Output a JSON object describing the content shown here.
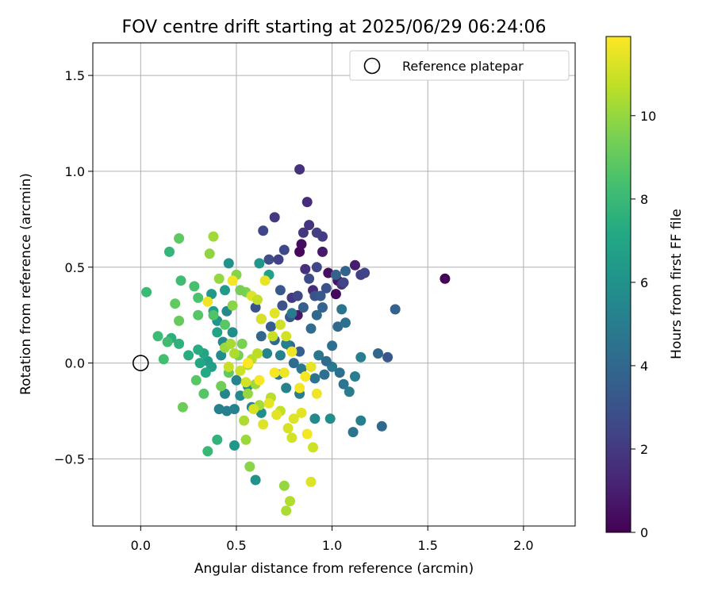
{
  "chart_data": {
    "type": "scatter",
    "title": "FOV centre drift starting at 2025/06/29 06:24:06",
    "xlabel": "Angular distance from reference (arcmin)",
    "ylabel": "Rotation from reference (arcmin)",
    "xlim": [
      -0.25,
      2.27
    ],
    "ylim": [
      -0.85,
      1.67
    ],
    "xticks": [
      0.0,
      0.5,
      1.0,
      1.5,
      2.0
    ],
    "xtick_labels": [
      "0.0",
      "0.5",
      "1.0",
      "1.5",
      "2.0"
    ],
    "yticks": [
      -0.5,
      0.0,
      0.5,
      1.0,
      1.5
    ],
    "ytick_labels": [
      "−0.5",
      "0.0",
      "0.5",
      "1.0",
      "1.5"
    ],
    "grid": true,
    "legend": {
      "placement": "top-right",
      "label": "Reference platepar",
      "marker": "open-circle"
    },
    "reference_point": {
      "x": 0.0,
      "y": 0.0
    },
    "colorbar": {
      "label": "Hours from first FF file",
      "min": 0,
      "max": 11.9,
      "ticks": [
        0,
        2,
        4,
        6,
        8,
        10
      ],
      "tick_labels": [
        "0",
        "2",
        "4",
        "6",
        "8",
        "10"
      ],
      "colormap": "viridis",
      "colors": [
        "#440154",
        "#482475",
        "#414487",
        "#355f8d",
        "#2a788e",
        "#21918c",
        "#22a884",
        "#44bf70",
        "#7ad151",
        "#bddf26",
        "#fde725"
      ]
    },
    "points": [
      [
        1.59,
        0.44,
        0.1
      ],
      [
        0.83,
        0.58,
        0.2
      ],
      [
        0.84,
        0.62,
        0.4
      ],
      [
        0.98,
        0.47,
        0.5
      ],
      [
        1.02,
        0.36,
        0.3
      ],
      [
        1.03,
        0.43,
        0.6
      ],
      [
        0.95,
        0.58,
        0.8
      ],
      [
        0.82,
        0.25,
        0.7
      ],
      [
        1.12,
        0.51,
        0.9
      ],
      [
        0.87,
        0.84,
        1.5
      ],
      [
        0.83,
        1.01,
        1.7
      ],
      [
        0.88,
        0.72,
        1.8
      ],
      [
        0.7,
        0.76,
        2.0
      ],
      [
        0.85,
        0.68,
        1.9
      ],
      [
        0.95,
        0.66,
        2.1
      ],
      [
        0.92,
        0.68,
        2.2
      ],
      [
        0.86,
        0.49,
        1.6
      ],
      [
        0.9,
        0.38,
        1.4
      ],
      [
        1.05,
        0.41,
        1.7
      ],
      [
        1.15,
        0.46,
        2.2
      ],
      [
        1.17,
        0.47,
        2.4
      ],
      [
        0.64,
        0.69,
        2.5
      ],
      [
        0.75,
        0.59,
        2.6
      ],
      [
        0.67,
        0.54,
        2.8
      ],
      [
        0.72,
        0.54,
        2.3
      ],
      [
        0.79,
        0.34,
        2.0
      ],
      [
        0.82,
        0.35,
        2.6
      ],
      [
        0.88,
        0.44,
        2.7
      ],
      [
        0.92,
        0.5,
        2.5
      ],
      [
        0.97,
        0.39,
        2.9
      ],
      [
        1.06,
        0.42,
        2.4
      ],
      [
        0.74,
        0.3,
        3.0
      ],
      [
        0.78,
        0.24,
        3.2
      ],
      [
        0.73,
        0.38,
        3.3
      ],
      [
        0.6,
        0.29,
        3.1
      ],
      [
        0.63,
        0.23,
        3.4
      ],
      [
        0.68,
        0.19,
        3.5
      ],
      [
        0.85,
        0.29,
        3.6
      ],
      [
        0.91,
        0.35,
        3.0
      ],
      [
        0.94,
        0.35,
        3.3
      ],
      [
        1.02,
        0.46,
        3.7
      ],
      [
        1.07,
        0.48,
        3.8
      ],
      [
        0.63,
        0.14,
        3.9
      ],
      [
        0.7,
        0.12,
        4.0
      ],
      [
        0.78,
        0.09,
        4.1
      ],
      [
        0.83,
        0.06,
        3.6
      ],
      [
        0.89,
        0.18,
        4.2
      ],
      [
        0.92,
        0.25,
        4.0
      ],
      [
        0.95,
        0.29,
        3.8
      ],
      [
        1.0,
        0.09,
        4.3
      ],
      [
        1.03,
        0.19,
        4.1
      ],
      [
        1.07,
        0.21,
        4.4
      ],
      [
        1.05,
        0.28,
        4.5
      ],
      [
        0.93,
        0.04,
        4.6
      ],
      [
        0.8,
        0.0,
        4.2
      ],
      [
        0.84,
        -0.03,
        4.7
      ],
      [
        0.91,
        -0.08,
        4.5
      ],
      [
        0.96,
        -0.06,
        4.3
      ],
      [
        1.0,
        -0.02,
        4.8
      ],
      [
        1.04,
        -0.05,
        4.4
      ],
      [
        1.06,
        -0.11,
        4.6
      ],
      [
        1.09,
        -0.15,
        4.9
      ],
      [
        1.12,
        -0.07,
        5.0
      ],
      [
        0.97,
        0.01,
        4.1
      ],
      [
        1.24,
        0.05,
        3.9
      ],
      [
        1.29,
        0.03,
        3.2
      ],
      [
        1.33,
        0.28,
        3.7
      ],
      [
        1.26,
        -0.33,
        4.0
      ],
      [
        1.11,
        -0.36,
        4.6
      ],
      [
        1.15,
        -0.3,
        5.1
      ],
      [
        1.15,
        0.03,
        5.0
      ],
      [
        0.79,
        0.26,
        4.8
      ],
      [
        0.76,
        0.1,
        5.0
      ],
      [
        0.73,
        0.04,
        5.2
      ],
      [
        0.66,
        0.05,
        5.4
      ],
      [
        0.72,
        -0.06,
        4.9
      ],
      [
        0.76,
        -0.13,
        5.3
      ],
      [
        0.83,
        -0.16,
        5.0
      ],
      [
        0.91,
        -0.29,
        5.5
      ],
      [
        0.99,
        -0.29,
        5.8
      ],
      [
        0.45,
        0.27,
        5.5
      ],
      [
        0.43,
        0.11,
        5.6
      ],
      [
        0.42,
        0.04,
        5.7
      ],
      [
        0.48,
        0.16,
        5.8
      ],
      [
        0.5,
        -0.09,
        5.3
      ],
      [
        0.52,
        -0.17,
        5.5
      ],
      [
        0.56,
        -0.12,
        5.9
      ],
      [
        0.44,
        -0.16,
        5.4
      ],
      [
        0.41,
        -0.24,
        5.2
      ],
      [
        0.45,
        -0.25,
        5.1
      ],
      [
        0.49,
        -0.24,
        5.3
      ],
      [
        0.58,
        -0.23,
        5.6
      ],
      [
        0.63,
        -0.26,
        5.8
      ],
      [
        0.6,
        -0.61,
        6.0
      ],
      [
        0.49,
        -0.43,
        6.2
      ],
      [
        0.37,
        0.36,
        6.3
      ],
      [
        0.4,
        0.22,
        6.1
      ],
      [
        0.44,
        0.38,
        6.4
      ],
      [
        0.38,
        0.27,
        6.6
      ],
      [
        0.35,
        0.01,
        6.5
      ],
      [
        0.37,
        -0.02,
        6.7
      ],
      [
        0.46,
        0.52,
        6.0
      ],
      [
        0.62,
        0.52,
        6.2
      ],
      [
        0.67,
        0.46,
        6.8
      ],
      [
        0.4,
        0.16,
        6.9
      ],
      [
        0.33,
        0.05,
        7.0
      ],
      [
        0.31,
        0.0,
        7.1
      ],
      [
        0.3,
        0.07,
        7.3
      ],
      [
        0.34,
        -0.05,
        7.2
      ],
      [
        0.25,
        0.04,
        7.4
      ],
      [
        0.16,
        0.13,
        7.5
      ],
      [
        0.2,
        0.1,
        7.6
      ],
      [
        0.4,
        -0.4,
        7.7
      ],
      [
        0.35,
        -0.46,
        7.9
      ],
      [
        0.15,
        0.58,
        7.8
      ],
      [
        0.03,
        0.37,
        8.0
      ],
      [
        0.09,
        0.14,
        8.1
      ],
      [
        0.12,
        0.02,
        8.3
      ],
      [
        0.21,
        0.43,
        8.2
      ],
      [
        0.28,
        0.4,
        8.4
      ],
      [
        0.3,
        0.34,
        8.5
      ],
      [
        0.3,
        0.25,
        8.7
      ],
      [
        0.38,
        0.25,
        8.6
      ],
      [
        0.44,
        0.2,
        8.8
      ],
      [
        0.2,
        0.65,
        8.9
      ],
      [
        0.18,
        0.31,
        9.0
      ],
      [
        0.2,
        0.22,
        9.1
      ],
      [
        0.14,
        0.11,
        8.2
      ],
      [
        0.29,
        -0.09,
        8.8
      ],
      [
        0.22,
        -0.23,
        9.2
      ],
      [
        0.33,
        -0.16,
        8.7
      ],
      [
        0.42,
        -0.12,
        9.3
      ],
      [
        0.46,
        -0.05,
        9.0
      ],
      [
        0.51,
        0.04,
        9.4
      ],
      [
        0.53,
        0.1,
        9.5
      ],
      [
        0.55,
        0.37,
        9.6
      ],
      [
        0.5,
        0.46,
        9.7
      ],
      [
        0.52,
        0.38,
        9.4
      ],
      [
        0.48,
        0.3,
        9.8
      ],
      [
        0.38,
        0.66,
        10.2
      ],
      [
        0.36,
        0.57,
        9.9
      ],
      [
        0.41,
        0.44,
        10.0
      ],
      [
        0.44,
        0.08,
        10.1
      ],
      [
        0.47,
        0.1,
        10.3
      ],
      [
        0.49,
        0.05,
        10.4
      ],
      [
        0.56,
        -0.01,
        10.5
      ],
      [
        0.58,
        0.02,
        10.6
      ],
      [
        0.61,
        0.05,
        10.7
      ],
      [
        0.6,
        -0.11,
        10.2
      ],
      [
        0.56,
        -0.16,
        10.0
      ],
      [
        0.62,
        -0.22,
        10.3
      ],
      [
        0.68,
        -0.18,
        10.6
      ],
      [
        0.73,
        -0.25,
        10.8
      ],
      [
        0.75,
        -0.64,
        10.0
      ],
      [
        0.78,
        -0.72,
        10.5
      ],
      [
        0.76,
        -0.77,
        10.4
      ],
      [
        0.57,
        -0.54,
        9.8
      ],
      [
        0.55,
        -0.4,
        10.1
      ],
      [
        0.54,
        -0.3,
        10.4
      ],
      [
        0.69,
        0.14,
        10.9
      ],
      [
        0.73,
        0.2,
        11.0
      ],
      [
        0.76,
        0.14,
        11.1
      ],
      [
        0.63,
        0.23,
        11.2
      ],
      [
        0.58,
        0.35,
        11.3
      ],
      [
        0.61,
        0.33,
        10.8
      ],
      [
        0.65,
        0.43,
        11.5
      ],
      [
        0.7,
        0.26,
        11.4
      ],
      [
        0.79,
        0.06,
        11.6
      ],
      [
        0.83,
        -0.13,
        11.7
      ],
      [
        0.86,
        -0.07,
        11.8
      ],
      [
        0.89,
        -0.02,
        11.5
      ],
      [
        0.92,
        -0.16,
        11.6
      ],
      [
        0.84,
        -0.26,
        11.4
      ],
      [
        0.8,
        -0.29,
        11.3
      ],
      [
        0.77,
        -0.34,
        11.2
      ],
      [
        0.79,
        -0.39,
        11.1
      ],
      [
        0.87,
        -0.37,
        11.7
      ],
      [
        0.9,
        -0.44,
        11.0
      ],
      [
        0.89,
        -0.62,
        11.3
      ],
      [
        0.7,
        -0.05,
        11.8
      ],
      [
        0.75,
        -0.05,
        11.6
      ],
      [
        0.67,
        -0.21,
        11.5
      ],
      [
        0.71,
        -0.27,
        11.4
      ],
      [
        0.64,
        -0.32,
        11.3
      ],
      [
        0.59,
        -0.24,
        11.2
      ],
      [
        0.55,
        -0.1,
        11.1
      ],
      [
        0.52,
        -0.04,
        11.0
      ],
      [
        0.46,
        -0.02,
        10.9
      ],
      [
        0.48,
        0.43,
        11.7
      ],
      [
        0.35,
        0.32,
        11.6
      ],
      [
        0.56,
        0.0,
        11.9
      ],
      [
        0.62,
        -0.09,
        11.8
      ]
    ]
  }
}
